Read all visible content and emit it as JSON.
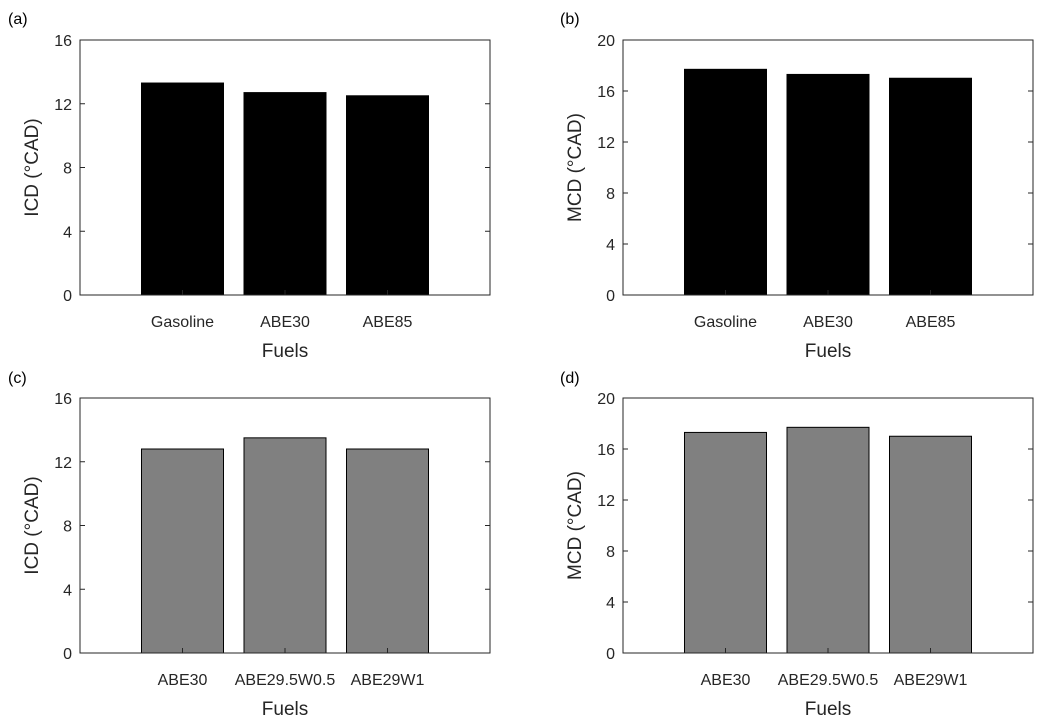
{
  "chart_data": [
    {
      "panel_label": "(a)",
      "type": "bar",
      "categories": [
        "Gasoline",
        "ABE30",
        "ABE85"
      ],
      "values": [
        13.3,
        12.7,
        12.5
      ],
      "xlabel": "Fuels",
      "ylabel": "ICD (°CAD)",
      "ylim": [
        0,
        16
      ],
      "yticks": [
        "0",
        "4",
        "8",
        "12",
        "16"
      ],
      "bar_color": "#000000",
      "grid": false
    },
    {
      "panel_label": "(b)",
      "type": "bar",
      "categories": [
        "Gasoline",
        "ABE30",
        "ABE85"
      ],
      "values": [
        17.7,
        17.3,
        17.0
      ],
      "xlabel": "Fuels",
      "ylabel": "MCD (°CAD)",
      "ylim": [
        0,
        20
      ],
      "yticks": [
        "0",
        "4",
        "8",
        "12",
        "16",
        "20"
      ],
      "bar_color": "#000000",
      "grid": false
    },
    {
      "panel_label": "(c)",
      "type": "bar",
      "categories": [
        "ABE30",
        "ABE29.5W0.5",
        "ABE29W1"
      ],
      "values": [
        12.8,
        13.5,
        12.8
      ],
      "xlabel": "Fuels",
      "ylabel": "ICD (°CAD)",
      "ylim": [
        0,
        16
      ],
      "yticks": [
        "0",
        "4",
        "8",
        "12",
        "16"
      ],
      "bar_color": "#808080",
      "grid": false
    },
    {
      "panel_label": "(d)",
      "type": "bar",
      "categories": [
        "ABE30",
        "ABE29.5W0.5",
        "ABE29W1"
      ],
      "values": [
        17.3,
        17.7,
        17.0
      ],
      "xlabel": "Fuels",
      "ylabel": "MCD (°CAD)",
      "ylim": [
        0,
        20
      ],
      "yticks": [
        "0",
        "4",
        "8",
        "12",
        "16",
        "20"
      ],
      "bar_color": "#808080",
      "grid": false
    }
  ]
}
